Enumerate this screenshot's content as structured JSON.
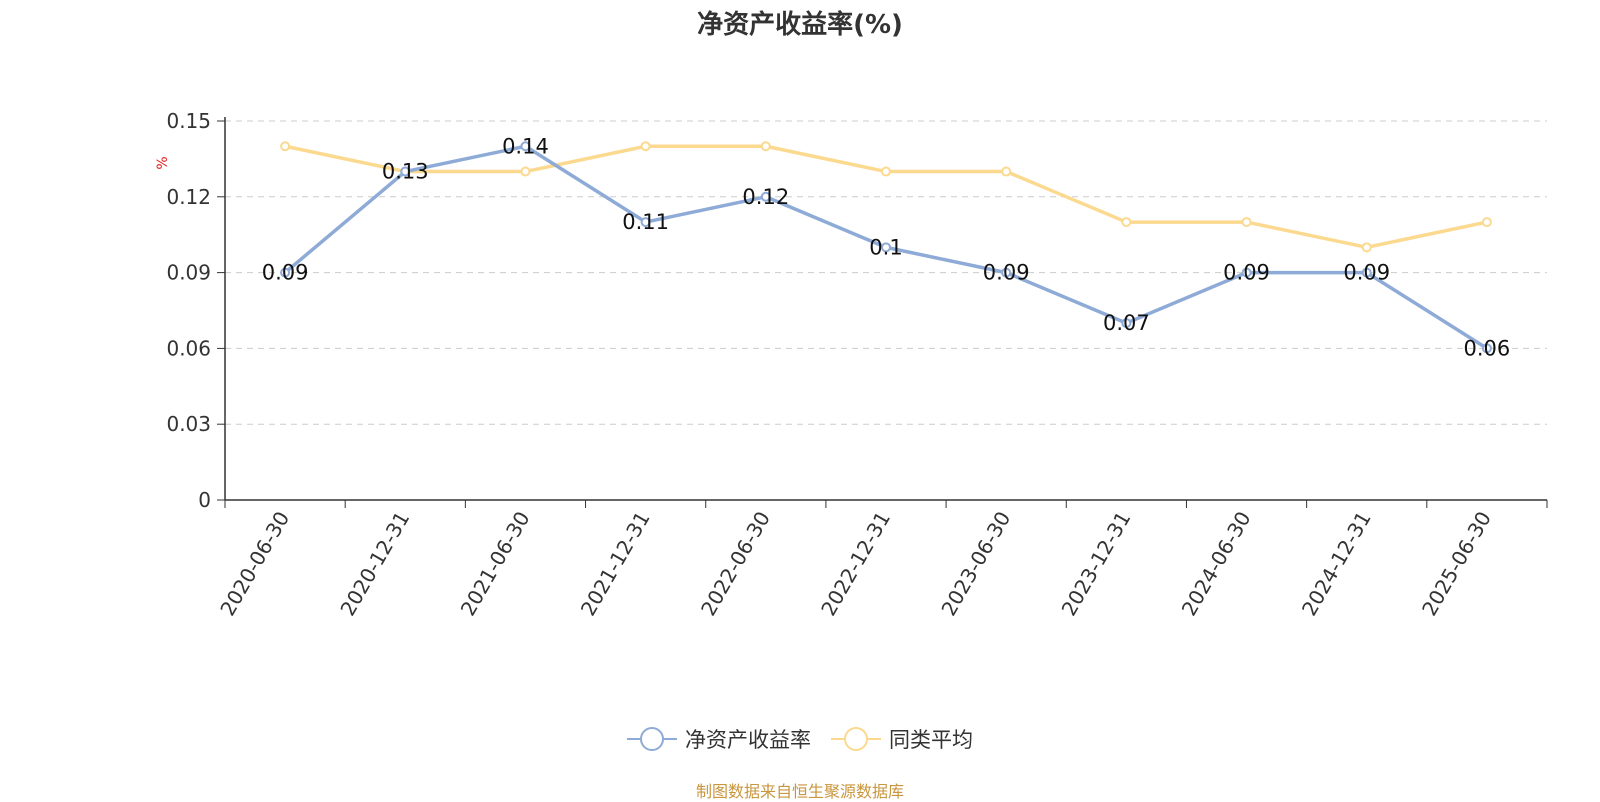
{
  "title": "净资产收益率(%)",
  "source": "制图数据来自恒生聚源数据库",
  "chart_data": {
    "type": "line",
    "title": "净资产收益率(%)",
    "ylabel": "%",
    "ylim": [
      0,
      0.15
    ],
    "yticks": [
      "0",
      "0.03",
      "0.06",
      "0.09",
      "0.12",
      "0.15"
    ],
    "grid": true,
    "legend_position": "bottom-center",
    "categories": [
      "2020-06-30",
      "2020-12-31",
      "2021-06-30",
      "2021-12-31",
      "2022-06-30",
      "2022-12-31",
      "2023-06-30",
      "2023-12-31",
      "2024-06-30",
      "2024-12-31",
      "2025-06-30"
    ],
    "series": [
      {
        "name": "净资产收益率",
        "color": "#8eaad6",
        "values": [
          0.09,
          0.13,
          0.14,
          0.11,
          0.12,
          0.1,
          0.09,
          0.07,
          0.09,
          0.09,
          0.06
        ],
        "labels": [
          "0.09",
          "0.13",
          "0.14",
          "0.11",
          "0.12",
          "0.1",
          "0.09",
          "0.07",
          "0.09",
          "0.09",
          "0.06"
        ],
        "show_labels": true
      },
      {
        "name": "同类平均",
        "color": "#fbd98f",
        "values": [
          0.14,
          0.13,
          0.13,
          0.14,
          0.14,
          0.13,
          0.13,
          0.11,
          0.11,
          0.1,
          0.11
        ],
        "show_labels": false
      }
    ]
  }
}
